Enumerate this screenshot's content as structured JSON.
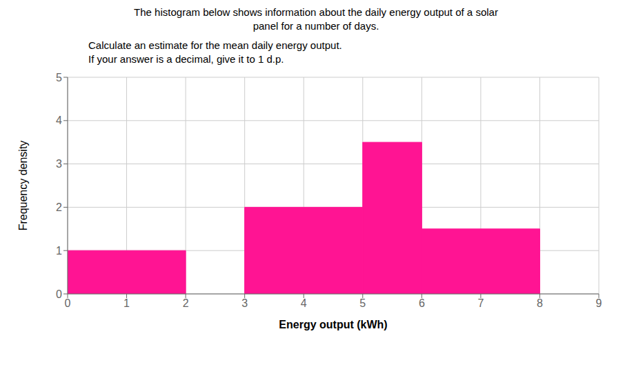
{
  "chart_data": {
    "type": "histogram",
    "title": "The histogram below shows information about the daily energy output of a solar\npanel for a number of days.",
    "subtitle": "Calculate an estimate for the mean daily energy output.\nIf your answer is a decimal, give it to 1 d.p.",
    "x_label": "Energy output (kWh)",
    "y_label": "Frequency density",
    "bins": [
      0,
      2,
      3,
      5,
      6,
      8
    ],
    "values": [
      1,
      null,
      2,
      3.5,
      1.5
    ],
    "color": "#FF1493",
    "xlim": [
      0,
      9
    ],
    "ylim": [
      0,
      5
    ],
    "xticks": [
      0,
      1,
      2,
      3,
      4,
      5,
      6,
      7,
      8,
      9
    ],
    "yticks": [
      0,
      1,
      2,
      3,
      4,
      5
    ],
    "grid": true
  }
}
